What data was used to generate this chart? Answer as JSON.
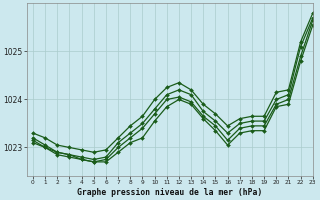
{
  "title": "Graphe pression niveau de la mer (hPa)",
  "background_color": "#cce8ee",
  "grid_color": "#aacccc",
  "line_color": "#1a5c1a",
  "xlim": [
    -0.5,
    23
  ],
  "ylim": [
    1022.4,
    1026.0
  ],
  "yticks": [
    1023,
    1024,
    1025
  ],
  "xticks": [
    0,
    1,
    2,
    3,
    4,
    5,
    6,
    7,
    8,
    9,
    10,
    11,
    12,
    13,
    14,
    15,
    16,
    17,
    18,
    19,
    20,
    21,
    22,
    23
  ],
  "series": [
    [
      1023.1,
      1023.0,
      1022.85,
      1022.8,
      1022.75,
      1022.7,
      1022.7,
      1022.9,
      1023.1,
      1023.2,
      1023.55,
      1023.85,
      1024.0,
      1023.9,
      1023.6,
      1023.35,
      1023.05,
      1023.3,
      1023.35,
      1023.35,
      1023.85,
      1023.9,
      1024.8,
      1025.55
    ],
    [
      1023.15,
      1023.0,
      1022.9,
      1022.85,
      1022.75,
      1022.7,
      1022.75,
      1023.0,
      1023.2,
      1023.4,
      1023.7,
      1024.0,
      1024.05,
      1023.95,
      1023.65,
      1023.45,
      1023.15,
      1023.4,
      1023.45,
      1023.45,
      1023.9,
      1024.0,
      1024.9,
      1025.65
    ],
    [
      1023.2,
      1023.05,
      1022.9,
      1022.85,
      1022.8,
      1022.75,
      1022.8,
      1023.1,
      1023.3,
      1023.5,
      1023.8,
      1024.1,
      1024.2,
      1024.1,
      1023.75,
      1023.55,
      1023.3,
      1023.5,
      1023.55,
      1023.55,
      1024.0,
      1024.1,
      1025.1,
      1025.7
    ],
    [
      1023.3,
      1023.2,
      1023.05,
      1023.0,
      1022.95,
      1022.9,
      1022.95,
      1023.2,
      1023.45,
      1023.65,
      1024.0,
      1024.25,
      1024.35,
      1024.2,
      1023.9,
      1023.7,
      1023.45,
      1023.6,
      1023.65,
      1023.65,
      1024.15,
      1024.2,
      1025.2,
      1025.8
    ]
  ]
}
